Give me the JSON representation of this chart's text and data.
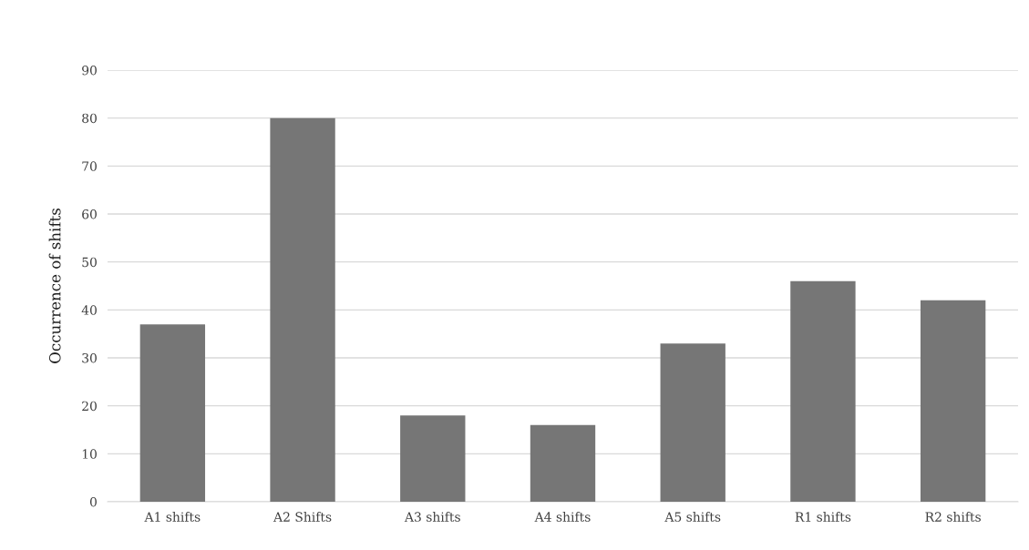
{
  "chart_data": {
    "type": "bar",
    "ylabel": "Occurrence of shifts",
    "categories": [
      "A1 shifts",
      "A2 Shifts",
      "A3 shifts",
      "A4 shifts",
      "A5 shifts",
      "R1 shifts",
      "R2 shifts"
    ],
    "values": [
      37,
      80,
      18,
      16,
      33,
      46,
      42
    ],
    "color": "#767676",
    "ylim": [
      0,
      90
    ],
    "yticks": [
      0,
      10,
      20,
      30,
      40,
      50,
      60,
      70,
      80,
      90
    ],
    "grid": "y"
  }
}
